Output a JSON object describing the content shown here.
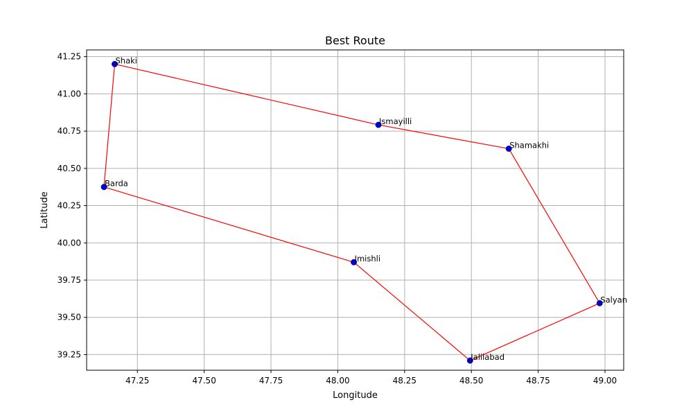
{
  "chart_data": {
    "type": "scatter",
    "title": "Best Route",
    "xlabel": "Longitude",
    "ylabel": "Latitude",
    "xlim": [
      47.06,
      49.07
    ],
    "ylim": [
      39.145,
      41.295
    ],
    "xticks": [
      "47.25",
      "47.50",
      "47.75",
      "48.00",
      "48.25",
      "48.50",
      "48.75",
      "49.00"
    ],
    "yticks": [
      "39.25",
      "39.50",
      "39.75",
      "40.00",
      "40.25",
      "40.50",
      "40.75",
      "41.00",
      "41.25"
    ],
    "grid": true,
    "route_color": "#ff0000",
    "point_color": "#0000cc",
    "points": [
      {
        "name": "Shaki",
        "x": 47.165,
        "y": 41.2
      },
      {
        "name": "Ismayilli",
        "x": 48.152,
        "y": 40.792
      },
      {
        "name": "Shamakhi",
        "x": 48.64,
        "y": 40.632
      },
      {
        "name": "Salyan",
        "x": 48.98,
        "y": 39.595
      },
      {
        "name": "Jalilabad",
        "x": 48.495,
        "y": 39.21
      },
      {
        "name": "Imishli",
        "x": 48.06,
        "y": 39.87
      },
      {
        "name": "Barda",
        "x": 47.125,
        "y": 40.375
      }
    ],
    "route_order": [
      "Shaki",
      "Ismayilli",
      "Shamakhi",
      "Salyan",
      "Jalilabad",
      "Imishli",
      "Barda",
      "Shaki"
    ]
  }
}
